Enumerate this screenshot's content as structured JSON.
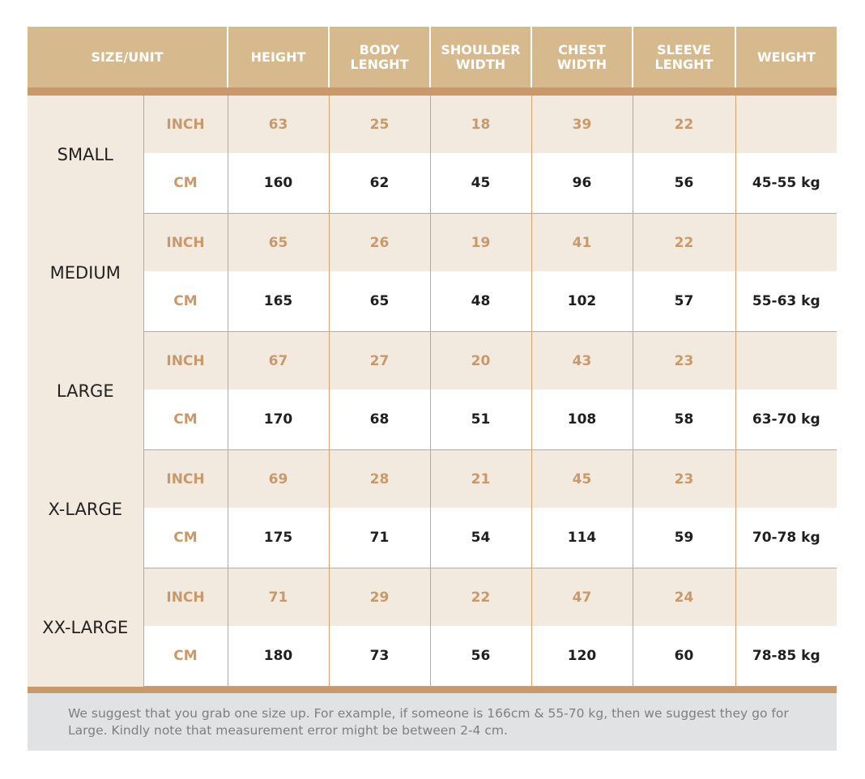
{
  "headers": [
    "SIZE/UNIT",
    "HEIGHT",
    "BODY LENGHT",
    "SHOULDER WIDTH",
    "CHEST WIDTH",
    "SLEEVE LENGHT",
    "WEIGHT"
  ],
  "sizes": [
    {
      "name": "SMALL",
      "inch_label": "INCH",
      "cm_label": "CM",
      "inch": [
        "63",
        "25",
        "18",
        "39",
        "22",
        ""
      ],
      "cm": [
        "160",
        "62",
        "45",
        "96",
        "56",
        "45-55 kg"
      ]
    },
    {
      "name": "MEDIUM",
      "inch_label": "INCH",
      "cm_label": "CM",
      "inch": [
        "65",
        "26",
        "19",
        "41",
        "22",
        ""
      ],
      "cm": [
        "165",
        "65",
        "48",
        "102",
        "57",
        "55-63 kg"
      ]
    },
    {
      "name": "LARGE",
      "inch_label": "INCH",
      "cm_label": "CM",
      "inch": [
        "67",
        "27",
        "20",
        "43",
        "23",
        ""
      ],
      "cm": [
        "170",
        "68",
        "51",
        "108",
        "58",
        "63-70 kg"
      ]
    },
    {
      "name": "X-LARGE",
      "inch_label": "INCH",
      "cm_label": "CM",
      "inch": [
        "69",
        "28",
        "21",
        "45",
        "23",
        ""
      ],
      "cm": [
        "175",
        "71",
        "54",
        "114",
        "59",
        "70-78 kg"
      ]
    },
    {
      "name": "XX-LARGE",
      "inch_label": "INCH",
      "cm_label": "CM",
      "inch": [
        "71",
        "29",
        "22",
        "47",
        "24",
        ""
      ],
      "cm": [
        "180",
        "73",
        "56",
        "120",
        "60",
        "78-85 kg"
      ]
    }
  ],
  "footer_note": "We suggest that you grab one size up. For example, if someone is 166cm & 55-70 kg, then we suggest they go for Large. Kindly note that measurement error might be between 2-4 cm.",
  "colors": {
    "header": "#d6ba8e",
    "band": "#c8996a",
    "row_alt": "#f3eadf",
    "footer": "#e1e2e4"
  }
}
